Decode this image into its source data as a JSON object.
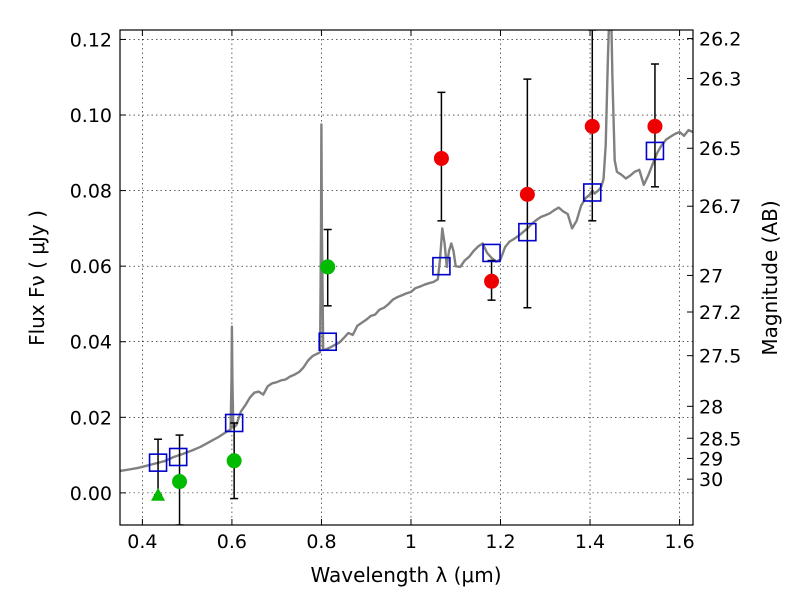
{
  "chart_data": {
    "type": "scatter",
    "xlabel": "Wavelength  λ (μm)",
    "ylabel": "Flux  Fν  ( μJy )",
    "y2label": "Magnitude (AB)",
    "xlim": [
      0.35,
      1.63
    ],
    "ylim": [
      -0.0085,
      0.1225
    ],
    "grid": true,
    "x_ticks": [
      0.4,
      0.6,
      0.8,
      1.0,
      1.2,
      1.4,
      1.6
    ],
    "x_tick_labels": [
      "0.4",
      "0.6",
      "0.8",
      "1",
      "1.2",
      "1.4",
      "1.6"
    ],
    "y_ticks": [
      0.0,
      0.02,
      0.04,
      0.06,
      0.08,
      0.1,
      0.12
    ],
    "y_tick_labels": [
      "0.00",
      "0.02",
      "0.04",
      "0.06",
      "0.08",
      "0.10",
      "0.12"
    ],
    "mag_ticks": [
      26.2,
      26.3,
      26.5,
      26.7,
      27,
      27.2,
      27.5,
      28,
      28.5,
      29,
      30
    ],
    "mag_tick_labels": [
      "26.2",
      "26.3",
      "26.5",
      "26.7",
      "27",
      "27.2",
      "27.5",
      "28",
      "28.5",
      "29",
      "30"
    ],
    "colors": {
      "template": "#808080",
      "model": "#0000cc",
      "green": "#00bb00",
      "red": "#ee0000",
      "errorbar": "#000000"
    },
    "series": [
      {
        "name": "template-spectrum",
        "kind": "line",
        "points": [
          [
            0.35,
            0.0058
          ],
          [
            0.37,
            0.0062
          ],
          [
            0.39,
            0.0066
          ],
          [
            0.41,
            0.0072
          ],
          [
            0.43,
            0.0078
          ],
          [
            0.45,
            0.0084
          ],
          [
            0.47,
            0.0095
          ],
          [
            0.49,
            0.0103
          ],
          [
            0.51,
            0.0112
          ],
          [
            0.53,
            0.0122
          ],
          [
            0.55,
            0.0135
          ],
          [
            0.57,
            0.0148
          ],
          [
            0.59,
            0.0163
          ],
          [
            0.597,
            0.0168
          ],
          [
            0.599,
            0.03
          ],
          [
            0.6,
            0.044
          ],
          [
            0.601,
            0.03
          ],
          [
            0.603,
            0.0172
          ],
          [
            0.61,
            0.018
          ],
          [
            0.62,
            0.0215
          ],
          [
            0.63,
            0.0232
          ],
          [
            0.64,
            0.0252
          ],
          [
            0.65,
            0.0265
          ],
          [
            0.66,
            0.0268
          ],
          [
            0.67,
            0.026
          ],
          [
            0.68,
            0.0282
          ],
          [
            0.69,
            0.029
          ],
          [
            0.7,
            0.0293
          ],
          [
            0.71,
            0.0298
          ],
          [
            0.72,
            0.03
          ],
          [
            0.73,
            0.0308
          ],
          [
            0.74,
            0.0313
          ],
          [
            0.75,
            0.032
          ],
          [
            0.76,
            0.0332
          ],
          [
            0.77,
            0.035
          ],
          [
            0.78,
            0.0362
          ],
          [
            0.79,
            0.0368
          ],
          [
            0.797,
            0.0372
          ],
          [
            0.799,
            0.07
          ],
          [
            0.8,
            0.0975
          ],
          [
            0.801,
            0.07
          ],
          [
            0.804,
            0.0378
          ],
          [
            0.81,
            0.038
          ],
          [
            0.82,
            0.0385
          ],
          [
            0.83,
            0.0392
          ],
          [
            0.84,
            0.0398
          ],
          [
            0.85,
            0.041
          ],
          [
            0.86,
            0.0423
          ],
          [
            0.87,
            0.0418
          ],
          [
            0.88,
            0.0442
          ],
          [
            0.89,
            0.045
          ],
          [
            0.9,
            0.0458
          ],
          [
            0.91,
            0.0468
          ],
          [
            0.92,
            0.0472
          ],
          [
            0.93,
            0.0485
          ],
          [
            0.94,
            0.049
          ],
          [
            0.95,
            0.05
          ],
          [
            0.96,
            0.0512
          ],
          [
            0.97,
            0.0518
          ],
          [
            0.98,
            0.0523
          ],
          [
            0.99,
            0.0528
          ],
          [
            1.0,
            0.0532
          ],
          [
            1.01,
            0.0542
          ],
          [
            1.02,
            0.0546
          ],
          [
            1.03,
            0.0551
          ],
          [
            1.04,
            0.0555
          ],
          [
            1.05,
            0.0558
          ],
          [
            1.06,
            0.0565
          ],
          [
            1.065,
            0.062
          ],
          [
            1.07,
            0.07
          ],
          [
            1.075,
            0.066
          ],
          [
            1.08,
            0.0598
          ],
          [
            1.085,
            0.064
          ],
          [
            1.09,
            0.066
          ],
          [
            1.095,
            0.064
          ],
          [
            1.1,
            0.06
          ],
          [
            1.11,
            0.0598
          ],
          [
            1.12,
            0.0615
          ],
          [
            1.13,
            0.0625
          ],
          [
            1.14,
            0.064
          ],
          [
            1.15,
            0.0652
          ],
          [
            1.16,
            0.066
          ],
          [
            1.17,
            0.0635
          ],
          [
            1.18,
            0.0622
          ],
          [
            1.19,
            0.0612
          ],
          [
            1.2,
            0.0618
          ],
          [
            1.21,
            0.065
          ],
          [
            1.22,
            0.0665
          ],
          [
            1.23,
            0.0672
          ],
          [
            1.24,
            0.068
          ],
          [
            1.25,
            0.069
          ],
          [
            1.26,
            0.07
          ],
          [
            1.27,
            0.0712
          ],
          [
            1.28,
            0.0722
          ],
          [
            1.29,
            0.073
          ],
          [
            1.3,
            0.0735
          ],
          [
            1.31,
            0.074
          ],
          [
            1.32,
            0.0748
          ],
          [
            1.33,
            0.0755
          ],
          [
            1.34,
            0.0745
          ],
          [
            1.35,
            0.0738
          ],
          [
            1.36,
            0.07
          ],
          [
            1.37,
            0.072
          ],
          [
            1.38,
            0.076
          ],
          [
            1.39,
            0.078
          ],
          [
            1.4,
            0.079
          ],
          [
            1.405,
            0.08
          ],
          [
            1.41,
            0.0792
          ],
          [
            1.42,
            0.0802
          ],
          [
            1.425,
            0.081
          ],
          [
            1.43,
            0.083
          ],
          [
            1.435,
            0.092
          ],
          [
            1.44,
            0.115
          ],
          [
            1.442,
            0.1225
          ],
          [
            1.448,
            0.1225
          ],
          [
            1.45,
            0.11
          ],
          [
            1.455,
            0.088
          ],
          [
            1.46,
            0.085
          ],
          [
            1.47,
            0.0842
          ],
          [
            1.48,
            0.0832
          ],
          [
            1.49,
            0.084
          ],
          [
            1.5,
            0.085
          ],
          [
            1.51,
            0.0855
          ],
          [
            1.52,
            0.0815
          ],
          [
            1.53,
            0.084
          ],
          [
            1.54,
            0.087
          ],
          [
            1.55,
            0.09
          ],
          [
            1.56,
            0.092
          ],
          [
            1.57,
            0.0935
          ],
          [
            1.58,
            0.0943
          ],
          [
            1.59,
            0.095
          ],
          [
            1.6,
            0.0955
          ],
          [
            1.61,
            0.0945
          ],
          [
            1.62,
            0.096
          ],
          [
            1.63,
            0.0955
          ]
        ]
      },
      {
        "name": "model-photometry",
        "kind": "square",
        "points": [
          [
            0.435,
            0.008
          ],
          [
            0.48,
            0.0095
          ],
          [
            0.605,
            0.0185
          ],
          [
            0.814,
            0.04
          ],
          [
            1.068,
            0.06
          ],
          [
            1.18,
            0.0635
          ],
          [
            1.26,
            0.069
          ],
          [
            1.405,
            0.0795
          ],
          [
            1.545,
            0.0905
          ]
        ]
      },
      {
        "name": "green-observations",
        "kind": "circle",
        "points": [
          [
            0.483,
            0.003,
            -0.0085,
            0.0153
          ],
          [
            0.605,
            0.0085,
            -0.0015,
            0.0185
          ],
          [
            0.814,
            0.0598,
            0.0495,
            0.0697
          ]
        ]
      },
      {
        "name": "green-upper-limit",
        "kind": "triangle",
        "points": [
          [
            0.435,
            -0.0005,
            -0.0005,
            0.0142
          ]
        ]
      },
      {
        "name": "red-observations",
        "kind": "circle",
        "points": [
          [
            1.068,
            0.0885,
            0.072,
            0.106
          ],
          [
            1.18,
            0.056,
            0.051,
            0.0615
          ],
          [
            1.26,
            0.079,
            0.049,
            0.1095
          ],
          [
            1.405,
            0.097,
            0.072,
            0.1225
          ],
          [
            1.545,
            0.097,
            0.081,
            0.1135
          ]
        ]
      }
    ]
  }
}
